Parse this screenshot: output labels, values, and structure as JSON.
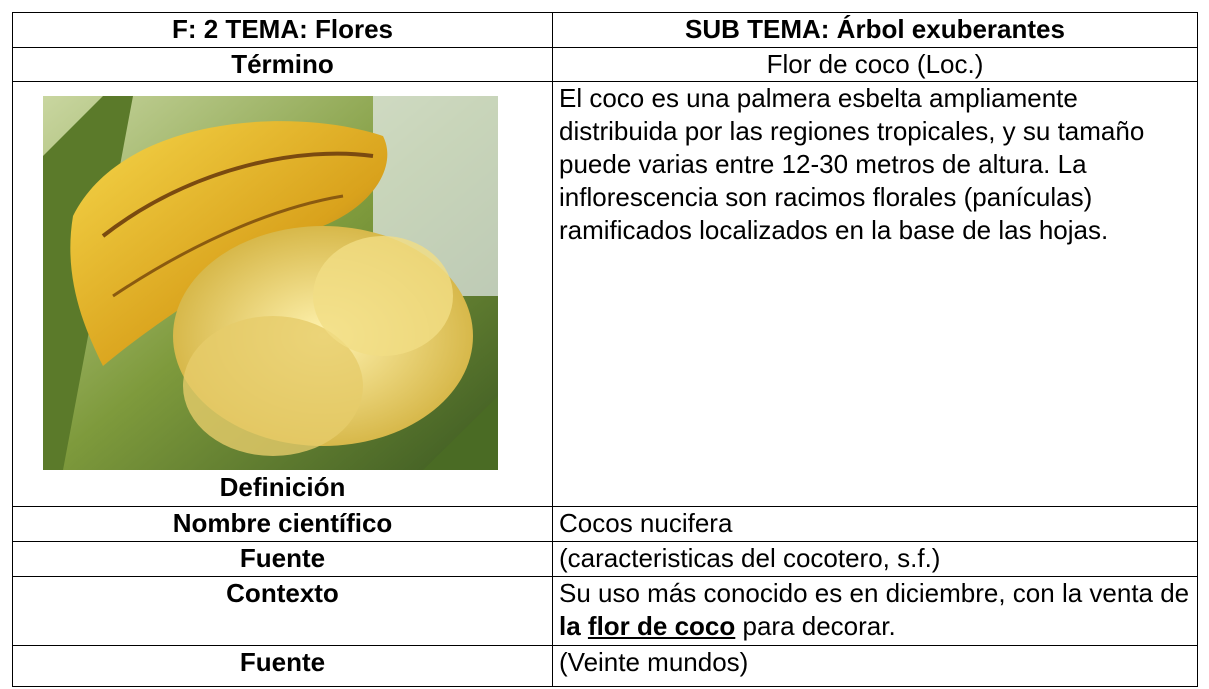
{
  "table": {
    "rows": [
      [
        "F: 2  TEMA: Flores",
        "SUB TEMA: Árbol exuberantes"
      ],
      [
        "Término",
        "Flor de coco (Loc.)"
      ],
      [
        "Definición",
        "El coco es una palmera esbelta ampliamente distribuida por las regiones tropicales, y su tamaño puede varias entre 12-30 metros de altura. La inflorescencia son racimos florales (panículas) ramificados localizados en la base de las hojas."
      ],
      [
        "Nombre científico",
        "Cocos nucifera"
      ],
      [
        "Fuente",
        "(caracteristicas del cocotero, s.f.)"
      ],
      [
        "Contexto",
        [
          "Su uso más conocido es en diciembre, con la venta de ",
          "la ",
          "flor de coco",
          " para decorar."
        ]
      ],
      [
        "Fuente",
        "(Veinte mundos)"
      ]
    ]
  }
}
